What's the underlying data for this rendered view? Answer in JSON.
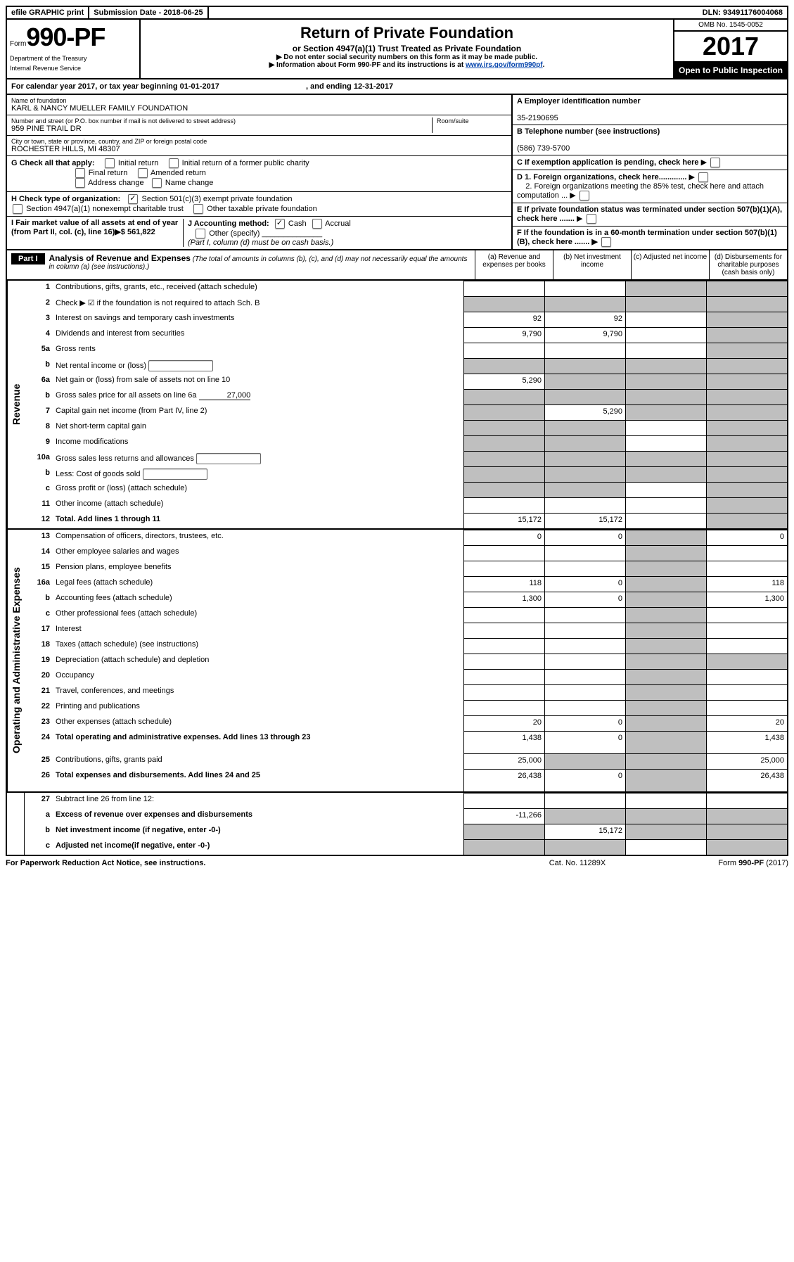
{
  "top_bar": {
    "efile": "efile GRAPHIC print",
    "submission": "Submission Date - 2018-06-25",
    "dln": "DLN: 93491176004068"
  },
  "header": {
    "form_label": "Form",
    "form_num": "990-PF",
    "dept1": "Department of the Treasury",
    "dept2": "Internal Revenue Service",
    "title": "Return of Private Foundation",
    "subtitle": "or Section 4947(a)(1) Trust Treated as Private Foundation",
    "note1": "▶ Do not enter social security numbers on this form as it may be made public.",
    "note2_pre": "▶ Information about Form 990-PF and its instructions is at ",
    "note2_link": "www.irs.gov/form990pf",
    "omb": "OMB No. 1545-0052",
    "year": "2017",
    "open": "Open to Public Inspection"
  },
  "cal_year": {
    "text_pre": "For calendar year 2017, or tax year beginning ",
    "begin": "01-01-2017",
    "mid": " , and ending ",
    "end": "12-31-2017"
  },
  "info": {
    "name_label": "Name of foundation",
    "name": "KARL & NANCY MUELLER FAMILY FOUNDATION",
    "ein_label": "A Employer identification number",
    "ein": "35-2190695",
    "addr_label": "Number and street (or P.O. box number if mail is not delivered to street address)",
    "room_label": "Room/suite",
    "addr": "959 PINE TRAIL DR",
    "phone_label": "B Telephone number (see instructions)",
    "phone": "(586) 739-5700",
    "city_label": "City or town, state or province, country, and ZIP or foreign postal code",
    "city": "ROCHESTER HILLS, MI  48307",
    "c_label": "C If exemption application is pending, check here",
    "g_label": "G Check all that apply:",
    "g_opts": {
      "initial": "Initial return",
      "initial_former": "Initial return of a former public charity",
      "final": "Final return",
      "amended": "Amended return",
      "addr_change": "Address change",
      "name_change": "Name change"
    },
    "d1": "D 1. Foreign organizations, check here.............",
    "d2": "2. Foreign organizations meeting the 85% test, check here and attach computation ...",
    "h_label": "H Check type of organization:",
    "h_501c3": "Section 501(c)(3) exempt private foundation",
    "h_4947": "Section 4947(a)(1) nonexempt charitable trust",
    "h_other": "Other taxable private foundation",
    "e_label": "E  If private foundation status was terminated under section 507(b)(1)(A), check here .......",
    "i_label": "I Fair market value of all assets at end of year (from Part II, col. (c), line 16)▶$  ",
    "i_value": "561,822",
    "j_label": "J Accounting method:",
    "j_cash": "Cash",
    "j_accrual": "Accrual",
    "j_other": "Other (specify)",
    "j_note": "(Part I, column (d) must be on cash basis.)",
    "f_label": "F  If the foundation is in a 60-month termination under section 507(b)(1)(B), check here .......  ▶"
  },
  "part1": {
    "label": "Part I",
    "title": "Analysis of Revenue and Expenses",
    "title_note": "(The total of amounts in columns (b), (c), and (d) may not necessarily equal the amounts in column (a) (see instructions).)",
    "col_a": "(a)    Revenue and expenses per books",
    "col_b": "(b)    Net investment income",
    "col_c": "(c)   Adjusted net income",
    "col_d": "(d)   Disbursements for charitable purposes (cash basis only)"
  },
  "revenue": {
    "label": "Revenue",
    "rows": [
      {
        "n": "1",
        "d": "Contributions, gifts, grants, etc., received (attach schedule)",
        "a": "",
        "b": "",
        "c": "grey",
        "dd": "grey"
      },
      {
        "n": "2",
        "d": "Check ▶ ☑ if the foundation is not required to attach Sch. B",
        "a": "grey",
        "b": "grey",
        "c": "grey",
        "dd": "grey",
        "nocells": true
      },
      {
        "n": "3",
        "d": "Interest on savings and temporary cash investments",
        "a": "92",
        "b": "92",
        "c": "",
        "dd": "grey"
      },
      {
        "n": "4",
        "d": "Dividends and interest from securities",
        "a": "9,790",
        "b": "9,790",
        "c": "",
        "dd": "grey"
      },
      {
        "n": "5a",
        "d": "Gross rents",
        "a": "",
        "b": "",
        "c": "",
        "dd": "grey"
      },
      {
        "n": "b",
        "d": "Net rental income or (loss)",
        "a": "grey",
        "b": "grey",
        "c": "grey",
        "dd": "grey",
        "inline": true
      },
      {
        "n": "6a",
        "d": "Net gain or (loss) from sale of assets not on line 10",
        "a": "5,290",
        "b": "grey",
        "c": "grey",
        "dd": "grey"
      },
      {
        "n": "b",
        "d": "Gross sales price for all assets on line 6a",
        "a": "grey",
        "b": "grey",
        "c": "grey",
        "dd": "grey",
        "inline_val": "27,000"
      },
      {
        "n": "7",
        "d": "Capital gain net income (from Part IV, line 2)",
        "a": "grey",
        "b": "5,290",
        "c": "grey",
        "dd": "grey"
      },
      {
        "n": "8",
        "d": "Net short-term capital gain",
        "a": "grey",
        "b": "grey",
        "c": "",
        "dd": "grey"
      },
      {
        "n": "9",
        "d": "Income modifications",
        "a": "grey",
        "b": "grey",
        "c": "",
        "dd": "grey"
      },
      {
        "n": "10a",
        "d": "Gross sales less returns and allowances",
        "a": "grey",
        "b": "grey",
        "c": "grey",
        "dd": "grey",
        "inline": true
      },
      {
        "n": "b",
        "d": "Less: Cost of goods sold",
        "a": "grey",
        "b": "grey",
        "c": "grey",
        "dd": "grey",
        "inline": true
      },
      {
        "n": "c",
        "d": "Gross profit or (loss) (attach schedule)",
        "a": "grey",
        "b": "grey",
        "c": "",
        "dd": "grey"
      },
      {
        "n": "11",
        "d": "Other income (attach schedule)",
        "a": "",
        "b": "",
        "c": "",
        "dd": "grey"
      },
      {
        "n": "12",
        "d": "Total. Add lines 1 through 11",
        "a": "15,172",
        "b": "15,172",
        "c": "",
        "dd": "grey",
        "bold": true
      }
    ]
  },
  "expenses": {
    "label": "Operating and Administrative Expenses",
    "rows": [
      {
        "n": "13",
        "d": "Compensation of officers, directors, trustees, etc.",
        "a": "0",
        "b": "0",
        "c": "grey",
        "dd": "0"
      },
      {
        "n": "14",
        "d": "Other employee salaries and wages",
        "a": "",
        "b": "",
        "c": "grey",
        "dd": ""
      },
      {
        "n": "15",
        "d": "Pension plans, employee benefits",
        "a": "",
        "b": "",
        "c": "grey",
        "dd": ""
      },
      {
        "n": "16a",
        "d": "Legal fees (attach schedule)",
        "a": "118",
        "b": "0",
        "c": "grey",
        "dd": "118"
      },
      {
        "n": "b",
        "d": "Accounting fees (attach schedule)",
        "a": "1,300",
        "b": "0",
        "c": "grey",
        "dd": "1,300"
      },
      {
        "n": "c",
        "d": "Other professional fees (attach schedule)",
        "a": "",
        "b": "",
        "c": "grey",
        "dd": ""
      },
      {
        "n": "17",
        "d": "Interest",
        "a": "",
        "b": "",
        "c": "grey",
        "dd": ""
      },
      {
        "n": "18",
        "d": "Taxes (attach schedule) (see instructions)",
        "a": "",
        "b": "",
        "c": "grey",
        "dd": ""
      },
      {
        "n": "19",
        "d": "Depreciation (attach schedule) and depletion",
        "a": "",
        "b": "",
        "c": "grey",
        "dd": "grey"
      },
      {
        "n": "20",
        "d": "Occupancy",
        "a": "",
        "b": "",
        "c": "grey",
        "dd": ""
      },
      {
        "n": "21",
        "d": "Travel, conferences, and meetings",
        "a": "",
        "b": "",
        "c": "grey",
        "dd": ""
      },
      {
        "n": "22",
        "d": "Printing and publications",
        "a": "",
        "b": "",
        "c": "grey",
        "dd": ""
      },
      {
        "n": "23",
        "d": "Other expenses (attach schedule)",
        "a": "20",
        "b": "0",
        "c": "grey",
        "dd": "20"
      },
      {
        "n": "24",
        "d": "Total operating and administrative expenses. Add lines 13 through 23",
        "a": "1,438",
        "b": "0",
        "c": "grey",
        "dd": "1,438",
        "bold": true,
        "tall": true
      },
      {
        "n": "25",
        "d": "Contributions, gifts, grants paid",
        "a": "25,000",
        "b": "grey",
        "c": "grey",
        "dd": "25,000"
      },
      {
        "n": "26",
        "d": "Total expenses and disbursements. Add lines 24 and 25",
        "a": "26,438",
        "b": "0",
        "c": "grey",
        "dd": "26,438",
        "bold": true,
        "tall": true
      }
    ]
  },
  "bottom": {
    "rows": [
      {
        "n": "27",
        "d": "Subtract line 26 from line 12:",
        "nocells": true
      },
      {
        "n": "a",
        "d": "Excess of revenue over expenses and disbursements",
        "a": "-11,266",
        "b": "grey",
        "c": "grey",
        "dd": "grey",
        "bold": true
      },
      {
        "n": "b",
        "d": "Net investment income (if negative, enter -0-)",
        "a": "grey",
        "b": "15,172",
        "c": "grey",
        "dd": "grey",
        "bold": true
      },
      {
        "n": "c",
        "d": "Adjusted net income(if negative, enter -0-)",
        "a": "grey",
        "b": "grey",
        "c": "",
        "dd": "grey",
        "bold": true
      }
    ]
  },
  "footer": {
    "left": "For Paperwork Reduction Act Notice, see instructions.",
    "center": "Cat. No. 11289X",
    "right": "Form 990-PF (2017)"
  }
}
